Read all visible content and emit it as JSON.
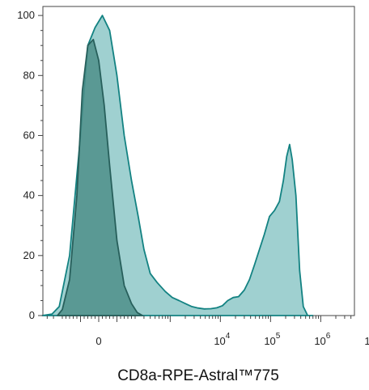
{
  "chart_data": {
    "type": "area",
    "title": "",
    "xlabel": "CD8a-RPE-Astral™775",
    "ylabel": "",
    "x_scale": "biexponential",
    "ylim": [
      0,
      103
    ],
    "y_ticks": [
      0,
      20,
      40,
      60,
      80,
      100
    ],
    "x_ticks": [
      {
        "label": "0",
        "base": "",
        "exp": "",
        "value": 0
      },
      {
        "label": "",
        "base": "10",
        "exp": "4",
        "value": 10000
      },
      {
        "label": "",
        "base": "10",
        "exp": "5",
        "value": 100000
      },
      {
        "label": "",
        "base": "10",
        "exp": "6",
        "value": 1000000
      },
      {
        "label": "",
        "base": "10",
        "exp": "7",
        "value": 10000000
      }
    ],
    "grid": false,
    "legend": "none",
    "series": [
      {
        "role": "stained",
        "fill": "#9fd0d0",
        "stroke": "#138282",
        "points": [
          [
            -500,
            0
          ],
          [
            -320,
            0.5
          ],
          [
            -230,
            3
          ],
          [
            -160,
            20
          ],
          [
            -100,
            60
          ],
          [
            -60,
            90
          ],
          [
            -20,
            96
          ],
          [
            20,
            100
          ],
          [
            60,
            95
          ],
          [
            100,
            80
          ],
          [
            140,
            60
          ],
          [
            180,
            45
          ],
          [
            230,
            33
          ],
          [
            300,
            22
          ],
          [
            400,
            14
          ],
          [
            550,
            11
          ],
          [
            800,
            8
          ],
          [
            1100,
            6
          ],
          [
            1500,
            5
          ],
          [
            2000,
            4
          ],
          [
            2700,
            3
          ],
          [
            3600,
            2.5
          ],
          [
            4800,
            2.2
          ],
          [
            6500,
            2.3
          ],
          [
            8500,
            2.6
          ],
          [
            11000,
            3.3
          ],
          [
            14000,
            5
          ],
          [
            18000,
            6
          ],
          [
            23000,
            6.3
          ],
          [
            30000,
            8.5
          ],
          [
            38000,
            12
          ],
          [
            48000,
            17
          ],
          [
            60000,
            22
          ],
          [
            75000,
            27
          ],
          [
            95000,
            33
          ],
          [
            120000,
            35
          ],
          [
            150000,
            38
          ],
          [
            180000,
            45
          ],
          [
            210000,
            53
          ],
          [
            240000,
            57
          ],
          [
            270000,
            52
          ],
          [
            320000,
            40
          ],
          [
            380000,
            15
          ],
          [
            450000,
            3
          ],
          [
            550000,
            0
          ],
          [
            700000,
            0
          ]
        ]
      },
      {
        "role": "control",
        "fill": "#4d8f8a",
        "stroke": "#275f5b",
        "points": [
          [
            -250,
            0
          ],
          [
            -200,
            2
          ],
          [
            -160,
            12
          ],
          [
            -120,
            40
          ],
          [
            -90,
            75
          ],
          [
            -60,
            90
          ],
          [
            -30,
            92
          ],
          [
            0,
            85
          ],
          [
            30,
            70
          ],
          [
            60,
            50
          ],
          [
            100,
            25
          ],
          [
            140,
            10
          ],
          [
            180,
            4
          ],
          [
            220,
            1
          ],
          [
            280,
            0
          ]
        ]
      }
    ]
  }
}
